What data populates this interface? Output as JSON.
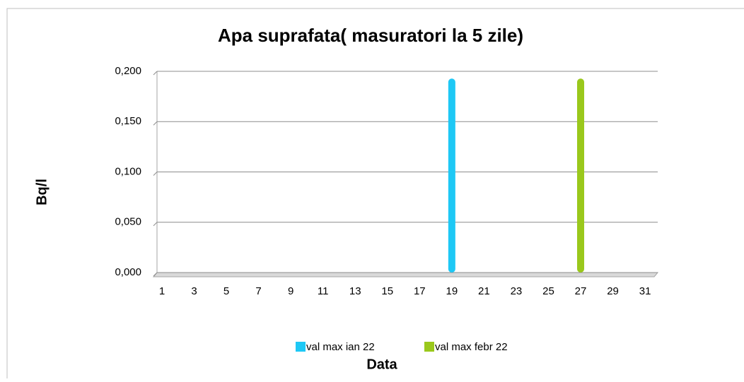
{
  "chart_data": {
    "type": "bar",
    "title": "Apa suprafata( masuratori la 5 zile)",
    "y_label": "Bq/l",
    "x_label": "Data",
    "categories": [
      "1",
      null,
      "3",
      null,
      "5",
      null,
      "7",
      null,
      "9",
      null,
      "11",
      null,
      "13",
      null,
      "15",
      null,
      "17",
      null,
      "19",
      null,
      "21",
      null,
      "23",
      null,
      "25",
      null,
      "27",
      null,
      "29",
      null,
      "31"
    ],
    "series": [
      {
        "name": "val max ian 22",
        "color": "#1ec8f5",
        "values": [
          null,
          null,
          null,
          null,
          null,
          null,
          null,
          null,
          null,
          null,
          null,
          null,
          null,
          null,
          null,
          null,
          null,
          null,
          0.19,
          null,
          null,
          null,
          null,
          null,
          null,
          null,
          null,
          null,
          null,
          null,
          null
        ]
      },
      {
        "name": "val max febr 22",
        "color": "#9ac81c",
        "values": [
          null,
          null,
          null,
          null,
          null,
          null,
          null,
          null,
          null,
          null,
          null,
          null,
          null,
          null,
          null,
          null,
          null,
          null,
          null,
          null,
          null,
          null,
          null,
          null,
          null,
          null,
          0.19,
          null,
          null,
          null,
          null
        ]
      }
    ],
    "ylim": [
      0,
      0.2
    ],
    "yticks": [
      {
        "value": 0,
        "label": "0,000"
      },
      {
        "value": 0.05,
        "label": "0,050"
      },
      {
        "value": 0.1,
        "label": "0,100"
      },
      {
        "value": 0.15,
        "label": "0,150"
      },
      {
        "value": 0.2,
        "label": "0,200"
      }
    ],
    "grid": true,
    "legend": "bottom"
  }
}
